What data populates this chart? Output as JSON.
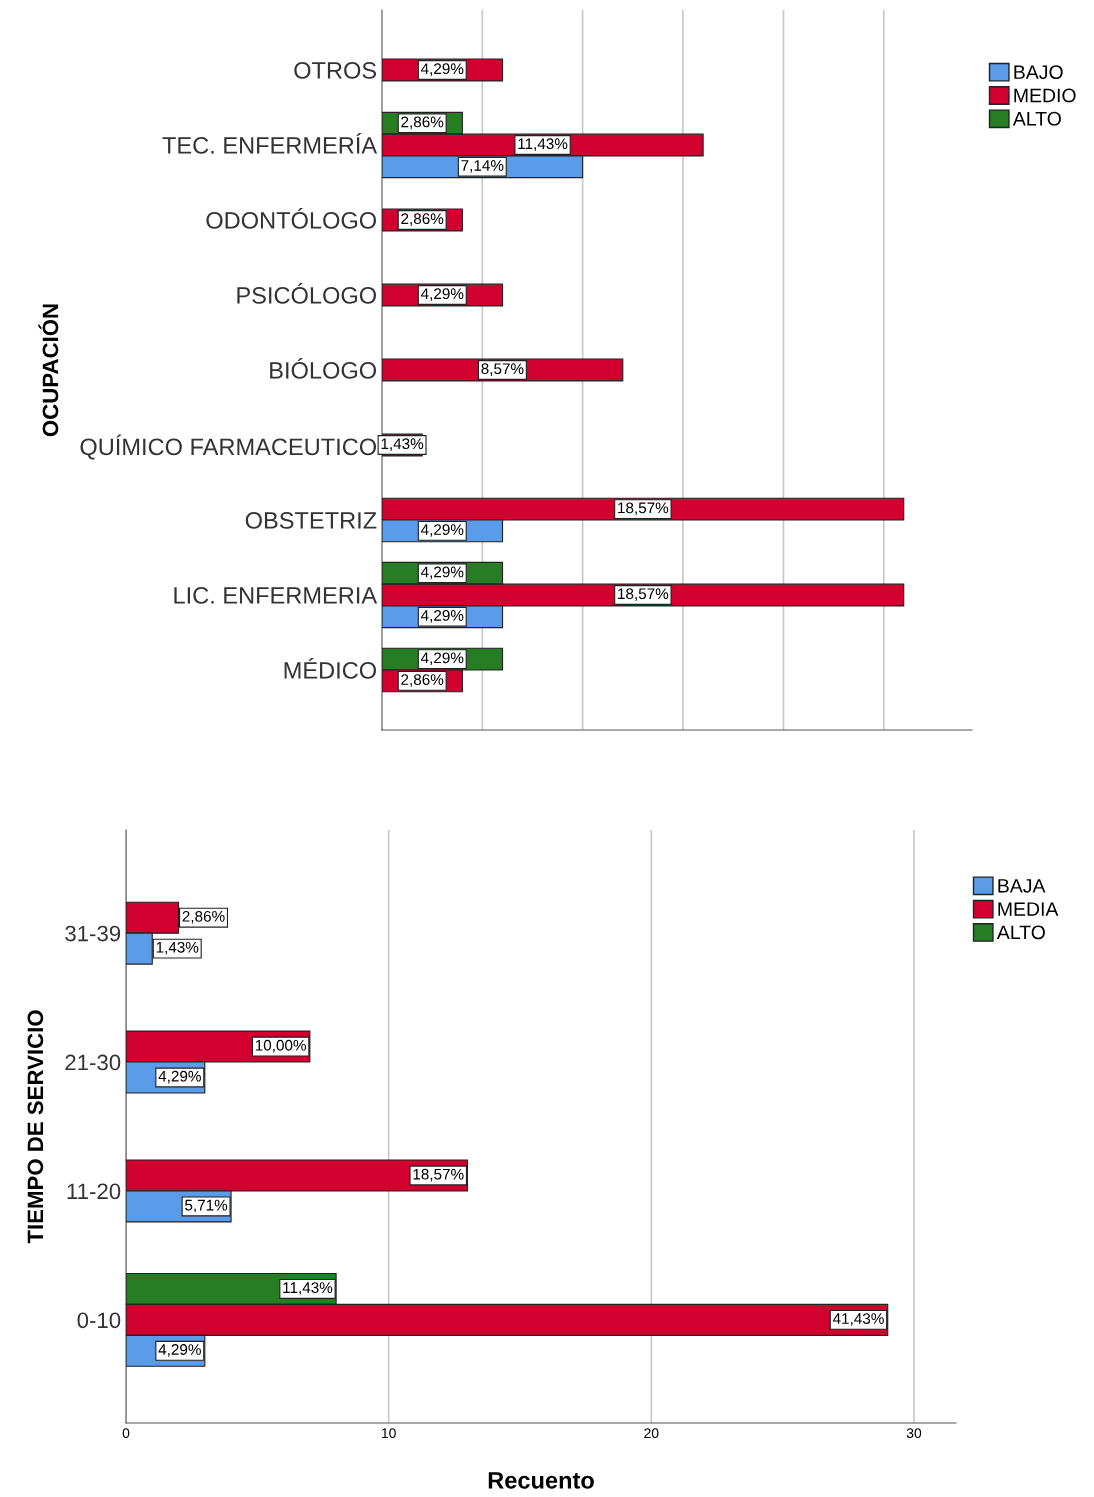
{
  "chart_data": [
    {
      "type": "bar",
      "orientation": "horizontal",
      "ylabel": "OCUPACIÓN",
      "categories": [
        "OTROS",
        "TEC. ENFERMERÍA",
        "ODONTÓLOGO",
        "PSICÓLOGO",
        "BIÓLOGO",
        "QUÍMICO FARMACEUTICO",
        "OBSTETRIZ",
        "LIC. ENFERMERIA",
        "MÉDICO"
      ],
      "series": [
        {
          "name": "BAJO",
          "color": "#5a9bea",
          "values": [
            null,
            7.14,
            null,
            null,
            null,
            null,
            4.29,
            4.29,
            null
          ],
          "value_labels": [
            null,
            "7,14%",
            null,
            null,
            null,
            null,
            "4,29%",
            "4,29%",
            null
          ]
        },
        {
          "name": "MEDIO",
          "color": "#d2002f",
          "values": [
            4.29,
            11.43,
            2.86,
            4.29,
            8.57,
            1.43,
            18.57,
            18.57,
            2.86
          ],
          "value_labels": [
            "4,29%",
            "11,43%",
            "2,86%",
            "4,29%",
            "8,57%",
            "1,43%",
            "18,57%",
            "18,57%",
            "2,86%"
          ]
        },
        {
          "name": "ALTO",
          "color": "#267d23",
          "values": [
            null,
            2.86,
            null,
            null,
            null,
            null,
            null,
            4.29,
            4.29
          ],
          "value_labels": [
            null,
            "2,86%",
            null,
            null,
            null,
            null,
            null,
            "4,29%",
            "4,29%"
          ]
        }
      ],
      "xlim": [
        0,
        21.0
      ],
      "xticks": [
        {
          "value": 3.57,
          "label": null
        },
        {
          "value": 7.14,
          "label": null
        },
        {
          "value": 10.71,
          "label": null
        },
        {
          "value": 14.29,
          "label": null
        },
        {
          "value": 17.86,
          "label": null
        }
      ],
      "tick_labels": "y",
      "grid": "x",
      "legend": "top right"
    },
    {
      "type": "bar",
      "orientation": "horizontal",
      "ylabel": "TIEMPO DE SERVICIO",
      "xlabel": "Recuento",
      "categories": [
        "31-39",
        "21-30",
        "11-20",
        "0-10"
      ],
      "series": [
        {
          "name": "BAJA",
          "color": "#5a9bea",
          "values": [
            1,
            3,
            4,
            3
          ]
        },
        {
          "name": "MEDIA",
          "color": "#d2002f",
          "values": [
            2,
            7,
            13,
            29
          ]
        },
        {
          "name": "ALTO",
          "color": "#267d23",
          "values": [
            null,
            null,
            null,
            8
          ]
        }
      ],
      "annotations": [
        {
          "text": "2,86%",
          "x": 2,
          "y": "31-39"
        },
        {
          "text": "1,43%",
          "x": 1,
          "y": "31-39"
        },
        {
          "text": "10,00%",
          "x": 7,
          "y": "21-30"
        },
        {
          "text": "4,29%",
          "x": 3,
          "y": "21-30"
        },
        {
          "text": "18,57%",
          "x": 13,
          "y": "11-20"
        },
        {
          "text": "5,71%",
          "x": 4,
          "y": "11-20"
        },
        "11,43%",
        {
          "text": "41,43%",
          "x": 29,
          "y": "0-10"
        },
        "4,29%"
      ],
      "xlim": [
        0,
        31.6
      ],
      "xticks": [
        0,
        10,
        20,
        30
      ],
      "grid": "x",
      "legend": "top right"
    }
  ]
}
